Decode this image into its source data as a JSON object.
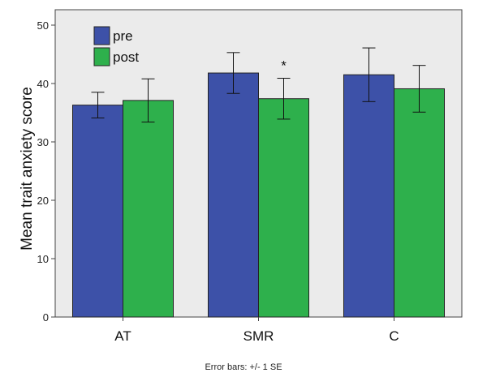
{
  "chart_data": {
    "type": "bar",
    "title": "",
    "xlabel": "",
    "ylabel": "Mean trait anxiety score",
    "ylim": [
      0,
      50
    ],
    "yticks": [
      0,
      10,
      20,
      30,
      40,
      50
    ],
    "categories": [
      "AT",
      "SMR",
      "C"
    ],
    "series": [
      {
        "name": "pre",
        "color": "#3d51a8",
        "values": [
          36.3,
          41.8,
          41.5
        ],
        "error": [
          2.2,
          3.5,
          4.6
        ]
      },
      {
        "name": "post",
        "color": "#2eb04c",
        "values": [
          37.1,
          37.4,
          39.1
        ],
        "error": [
          3.7,
          3.5,
          4.0
        ]
      }
    ],
    "annotations": [
      {
        "category": "SMR",
        "series": "post",
        "text": "*"
      }
    ],
    "legend": "top-left",
    "footnote": "Error bars: +/- 1 SE",
    "plot_background": "#ebebeb"
  }
}
